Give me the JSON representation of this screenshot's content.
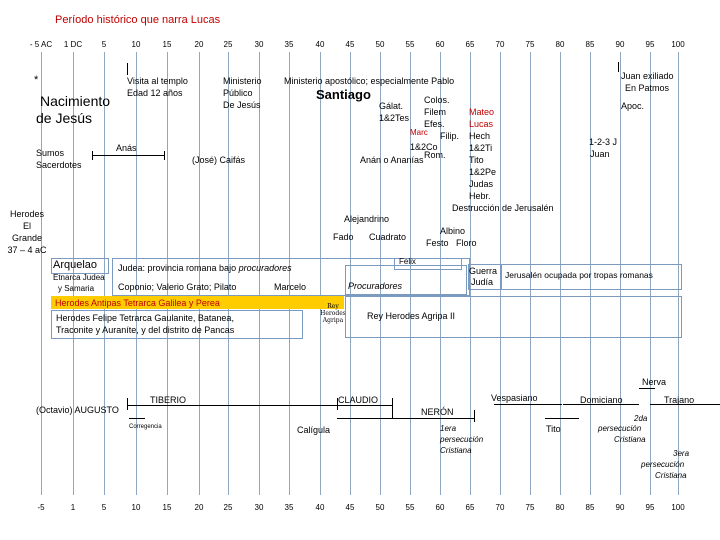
{
  "title": "Período histórico que narra Lucas",
  "axis_top": [
    "- 5 AC",
    "1 DC",
    "5",
    "10",
    "15",
    "20",
    "25",
    "30",
    "35",
    "40",
    "45",
    "50",
    "55",
    "60",
    "65",
    "70",
    "75",
    "80",
    "85",
    "90",
    "95",
    "100"
  ],
  "axis_bottom": [
    "-5",
    "1",
    "5",
    "10",
    "15",
    "20",
    "25",
    "30",
    "35",
    "40",
    "45",
    "50",
    "55",
    "60",
    "65",
    "70",
    "75",
    "80",
    "85",
    "90",
    "95",
    "100"
  ],
  "jesus": {
    "star": "*",
    "birth_line1": "Nacimiento",
    "birth_line2": "de Jesús",
    "temple_line1": "Visita al templo",
    "temple_line2": "Edad 12 años",
    "ministry_line1": "Ministerio",
    "ministry_line2": "Público",
    "ministry_line3": "De Jesús"
  },
  "apostolic": {
    "label": "Ministerio apostólico; especialmente Pablo",
    "santiago": "Santiago",
    "galat": "Gálat.",
    "tes": "1&2Tes",
    "colos": "Colos.",
    "filem": "Filem",
    "mateo": "Mateo",
    "efes": "Efes.",
    "lucas": "Lucas",
    "marc": "Marc",
    "filip": "Filip.",
    "hech": "Hech",
    "co": "1&2Co",
    "ti": "1&2Ti",
    "rom": "Rom.",
    "tito": "Tito",
    "pe": "1&2Pe",
    "judas": "Judas",
    "hebr": "Hebr.",
    "destruccion": "Destrucción de Jerusalén",
    "juan_exiliado_1": "Juan exiliado",
    "juan_exiliado_2": "En Patmos",
    "apoc": "Apoc.",
    "juan_cartas_1": "1-2-3 J",
    "juan_cartas_2": "Juan"
  },
  "priests": {
    "label_1": "Sumos",
    "label_2": "Sacerdotes",
    "anas": "Anás",
    "caifas": "(José) Caifás",
    "anan": "Anán o Ananías"
  },
  "herod_great": {
    "line1": "Herodes",
    "line2": "El",
    "line3": "Grande",
    "line4": "37 – 4 aC"
  },
  "rulers": {
    "alejandrino": "Alejandrino",
    "fado": "Fado",
    "cuadrato": "Cuadrato",
    "albino": "Albino",
    "festo": "Festo",
    "floro": "Floro",
    "felix": "Felix",
    "arquelao": "Arquelao",
    "etnarca_1": "Etnarca Judea",
    "etnarca_2": "y Samaria",
    "judea_prov_prefix": "Judea: provincia romana bajo",
    "judea_prov_italic": "procuradores",
    "coponio": "Coponio; Valerio Grato;  Pilato",
    "marcelo": "Marcelo",
    "procuradores": "Procuradores",
    "guerra_1": "Guerra",
    "guerra_2": "Judía",
    "ocupada": "Jerusalén ocupada por tropas romanas",
    "antipas": "Herodes Antipas Tetrarca Galilea y Perea",
    "felipe_1": "Herodes Felipe Tetrarca Gaulanite, Batanea,",
    "felipe_2": "Traconite y Auraníte, y del distrito de Pancas",
    "rey_1": "Rey",
    "rey_2": "Herodes",
    "rey_3": "Agripa",
    "agripa2": "Rey Herodes Agripa II"
  },
  "emperors": {
    "augusto": "(Octavio) AUGUSTO",
    "corregencia": "Corregencia",
    "tiberio": "TIBERIO",
    "caligula": "Calígula",
    "claudio": "CLAUDIO",
    "neron": "NERÓN",
    "persec1_1": "1era",
    "persec1_2": "persecución",
    "persec1_3": "Cristiana",
    "vespasiano": "Vespasiano",
    "tito": "Tito",
    "domiciano": "Domiciano",
    "persec2_1": "2da",
    "persec2_2": "persecución",
    "persec2_3": "Cristiana",
    "nerva": "Nerva",
    "trajano": "Trajano",
    "persec3_1": "3era",
    "persec3_2": "persecución",
    "persec3_3": "Cristiana"
  },
  "colors": {
    "grid": "#8fa8bf",
    "red": "#c00000",
    "antipas_bar": "#ffcc00",
    "box_border": "#7a9abf"
  }
}
